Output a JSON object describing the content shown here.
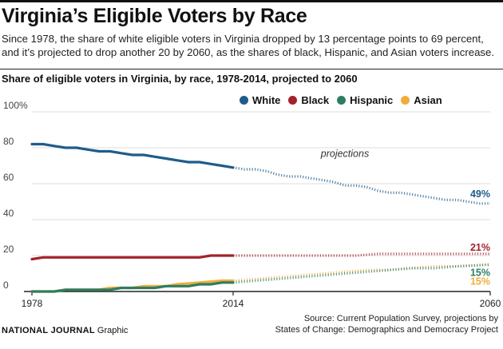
{
  "header": {
    "title": "Virginia’s Eligible Voters by Race",
    "subtitle": "Since 1978, the share of white eligible voters in Virginia dropped by 13 percentage points to 69 percent, and it’s projected to drop another 20 by 2060, as the shares of black, Hispanic, and Asian voters increase."
  },
  "footer": {
    "brand": "NATIONAL JOURNAL",
    "brand_suffix": "Graphic",
    "source_line1": "Source: Current Population Survey, projections by",
    "source_line2": "States of Change: Demographics and Democracy Project"
  },
  "chart_data": {
    "type": "line",
    "title": "Share of eligible voters in Virginia, by race, 1978-2014, projected to 2060",
    "annotation": "projections",
    "xlim": [
      1978,
      2060
    ],
    "ylim": [
      0,
      100
    ],
    "x_ticks": [
      1978,
      2014,
      2060
    ],
    "y_ticks": [
      0,
      20,
      40,
      60,
      80,
      100
    ],
    "y_tick_labels": [
      "0",
      "20",
      "40",
      "60",
      "80",
      "100%"
    ],
    "projection_start": 2014,
    "grid": true,
    "legend_position": "top-right",
    "series": [
      {
        "name": "White",
        "color": "#1f5c8b",
        "end_label": "49%",
        "points": [
          [
            1978,
            82
          ],
          [
            1980,
            82
          ],
          [
            1982,
            81
          ],
          [
            1984,
            80
          ],
          [
            1986,
            80
          ],
          [
            1988,
            79
          ],
          [
            1990,
            78
          ],
          [
            1992,
            78
          ],
          [
            1994,
            77
          ],
          [
            1996,
            76
          ],
          [
            1998,
            76
          ],
          [
            2000,
            75
          ],
          [
            2002,
            74
          ],
          [
            2004,
            73
          ],
          [
            2006,
            72
          ],
          [
            2008,
            72
          ],
          [
            2010,
            71
          ],
          [
            2012,
            70
          ],
          [
            2014,
            69
          ],
          [
            2016,
            68
          ],
          [
            2018,
            68
          ],
          [
            2020,
            67
          ],
          [
            2022,
            65
          ],
          [
            2024,
            64
          ],
          [
            2026,
            64
          ],
          [
            2028,
            63
          ],
          [
            2030,
            62
          ],
          [
            2032,
            61
          ],
          [
            2034,
            59
          ],
          [
            2036,
            59
          ],
          [
            2038,
            58
          ],
          [
            2040,
            56
          ],
          [
            2042,
            55
          ],
          [
            2044,
            55
          ],
          [
            2046,
            54
          ],
          [
            2048,
            53
          ],
          [
            2050,
            52
          ],
          [
            2052,
            51
          ],
          [
            2054,
            51
          ],
          [
            2056,
            50
          ],
          [
            2058,
            49
          ],
          [
            2060,
            49
          ]
        ]
      },
      {
        "name": "Black",
        "color": "#a3222b",
        "end_label": "21%",
        "points": [
          [
            1978,
            18
          ],
          [
            1980,
            19
          ],
          [
            1990,
            19
          ],
          [
            2000,
            19
          ],
          [
            2008,
            19
          ],
          [
            2010,
            20
          ],
          [
            2014,
            20
          ],
          [
            2020,
            20
          ],
          [
            2030,
            20
          ],
          [
            2036,
            20
          ],
          [
            2040,
            21
          ],
          [
            2050,
            21
          ],
          [
            2060,
            21
          ]
        ]
      },
      {
        "name": "Hispanic",
        "color": "#2e7d62",
        "end_label": "15%",
        "points": [
          [
            1978,
            0
          ],
          [
            1982,
            0
          ],
          [
            1984,
            1
          ],
          [
            1988,
            1
          ],
          [
            1992,
            1
          ],
          [
            1994,
            2
          ],
          [
            1998,
            2
          ],
          [
            2000,
            2
          ],
          [
            2002,
            3
          ],
          [
            2006,
            3
          ],
          [
            2008,
            4
          ],
          [
            2010,
            4
          ],
          [
            2012,
            5
          ],
          [
            2014,
            5
          ],
          [
            2018,
            6
          ],
          [
            2022,
            7
          ],
          [
            2026,
            8
          ],
          [
            2030,
            9
          ],
          [
            2034,
            10
          ],
          [
            2038,
            11
          ],
          [
            2042,
            12
          ],
          [
            2046,
            13
          ],
          [
            2050,
            13
          ],
          [
            2054,
            14
          ],
          [
            2060,
            15
          ]
        ]
      },
      {
        "name": "Asian",
        "color": "#f0ad3c",
        "end_label": "15%",
        "points": [
          [
            1978,
            0
          ],
          [
            1982,
            0
          ],
          [
            1984,
            1
          ],
          [
            1990,
            1
          ],
          [
            1992,
            2
          ],
          [
            1996,
            2
          ],
          [
            1998,
            3
          ],
          [
            2002,
            3
          ],
          [
            2004,
            4
          ],
          [
            2008,
            5
          ],
          [
            2012,
            6
          ],
          [
            2014,
            6
          ],
          [
            2018,
            7
          ],
          [
            2022,
            8
          ],
          [
            2026,
            9
          ],
          [
            2030,
            10
          ],
          [
            2034,
            11
          ],
          [
            2038,
            12
          ],
          [
            2042,
            12
          ],
          [
            2046,
            13
          ],
          [
            2050,
            14
          ],
          [
            2054,
            14
          ],
          [
            2060,
            15
          ]
        ]
      }
    ]
  }
}
